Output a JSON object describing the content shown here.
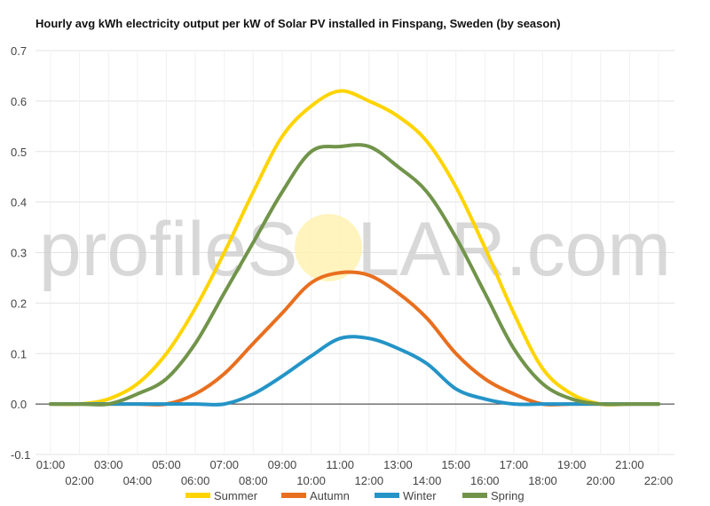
{
  "title": "Hourly avg kWh electricity output per kW of Solar PV installed in Finspang, Sweden (by season)",
  "watermark": {
    "left_text": "profileS",
    "middle_text": "O",
    "right_text": "LAR.com"
  },
  "chart_data": {
    "type": "line",
    "title": "Hourly avg kWh electricity output per kW of Solar PV installed in Finspang, Sweden (by season)",
    "xlabel": "",
    "ylabel": "",
    "ylim": [
      -0.1,
      0.7
    ],
    "yticks": [
      "-0.1",
      "0.0",
      "0.1",
      "0.2",
      "0.3",
      "0.4",
      "0.5",
      "0.6",
      "0.7"
    ],
    "grid": true,
    "legend_position": "bottom",
    "categories": [
      "01:00",
      "02:00",
      "03:00",
      "04:00",
      "05:00",
      "06:00",
      "07:00",
      "08:00",
      "09:00",
      "10:00",
      "11:00",
      "12:00",
      "13:00",
      "14:00",
      "15:00",
      "16:00",
      "17:00",
      "18:00",
      "19:00",
      "20:00",
      "21:00",
      "22:00"
    ],
    "series": [
      {
        "name": "Summer",
        "color": "#ffd400",
        "values": [
          0.0,
          0.0,
          0.01,
          0.04,
          0.1,
          0.19,
          0.3,
          0.42,
          0.53,
          0.59,
          0.62,
          0.6,
          0.57,
          0.52,
          0.43,
          0.31,
          0.18,
          0.07,
          0.02,
          0.0,
          0.0,
          0.0
        ]
      },
      {
        "name": "Autumn",
        "color": "#e86f1f",
        "values": [
          0.0,
          0.0,
          0.0,
          0.0,
          0.0,
          0.02,
          0.06,
          0.12,
          0.18,
          0.24,
          0.26,
          0.255,
          0.22,
          0.17,
          0.1,
          0.05,
          0.02,
          0.0,
          0.0,
          0.0,
          0.0,
          0.0
        ]
      },
      {
        "name": "Winter",
        "color": "#2494c7",
        "values": [
          0.0,
          0.0,
          0.0,
          0.0,
          0.0,
          0.0,
          0.0,
          0.02,
          0.055,
          0.095,
          0.13,
          0.13,
          0.11,
          0.08,
          0.03,
          0.01,
          0.0,
          0.0,
          0.0,
          0.0,
          0.0,
          0.0
        ]
      },
      {
        "name": "Spring",
        "color": "#71944a",
        "values": [
          0.0,
          0.0,
          0.0,
          0.02,
          0.05,
          0.12,
          0.22,
          0.32,
          0.42,
          0.5,
          0.51,
          0.51,
          0.47,
          0.42,
          0.33,
          0.22,
          0.11,
          0.04,
          0.01,
          0.0,
          0.0,
          0.0
        ]
      }
    ]
  }
}
